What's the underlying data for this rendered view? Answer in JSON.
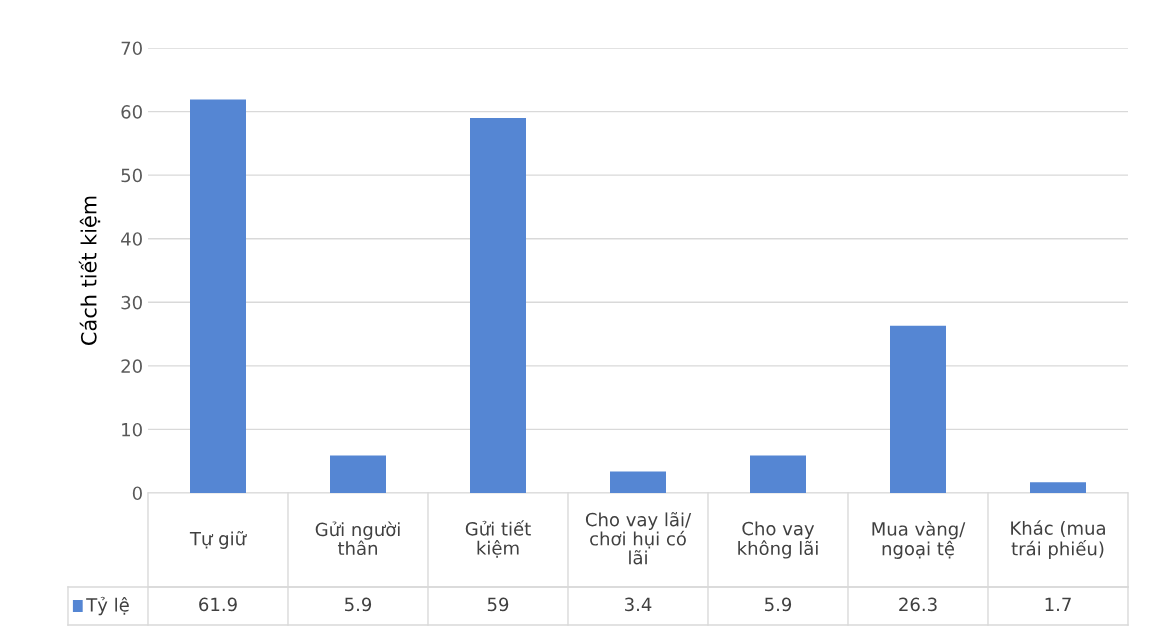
{
  "chart_data": {
    "type": "bar",
    "ylabel": "Cách tiết kiệm",
    "categories": [
      "Tự giữ",
      "Gửi người thân",
      "Gửi tiết kiệm",
      "Cho vay lãi/ chơi hụi có lãi",
      "Cho vay không lãi",
      "Mua vàng/ ngoại tệ",
      "Khác (mua trái phiếu)"
    ],
    "series": [
      {
        "name": "Tỷ lệ",
        "color": "#5586d3",
        "values": [
          61.9,
          5.9,
          59,
          3.4,
          5.9,
          26.3,
          1.7
        ]
      }
    ],
    "data_labels": true,
    "ylim": [
      0,
      70
    ],
    "yticks": [
      0,
      10,
      20,
      30,
      40,
      50,
      60,
      70
    ],
    "grid": "y"
  }
}
